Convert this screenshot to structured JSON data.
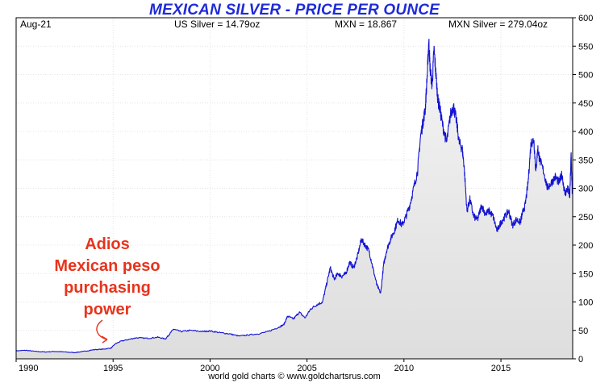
{
  "chart_data": {
    "type": "line",
    "title": "MEXICAN SILVER - PRICE PER OUNCE",
    "header": {
      "date": "Aug-21",
      "us_silver": "US Silver = 14.79oz",
      "mxn": "MXN = 18.867",
      "mxn_silver": "MXN Silver = 279.04oz"
    },
    "annotation": [
      "Adios",
      "Mexican peso",
      "purchasing",
      "power"
    ],
    "credit": "world gold charts © www.goldchartsrus.com",
    "xlim": [
      1990,
      2018.7
    ],
    "ylim": [
      0,
      600
    ],
    "x_ticks": [
      1990,
      1995,
      2000,
      2005,
      2010,
      2015
    ],
    "y_ticks": [
      0,
      50,
      100,
      150,
      200,
      250,
      300,
      350,
      400,
      450,
      500,
      550,
      600
    ],
    "grid": true,
    "series": [
      {
        "color": "#1414d2",
        "x": [
          1990.0,
          1990.5,
          1991.0,
          1991.5,
          1992.0,
          1992.5,
          1993.0,
          1993.5,
          1994.0,
          1994.5,
          1994.9,
          1995.1,
          1995.4,
          1995.8,
          1996.2,
          1996.8,
          1997.3,
          1997.7,
          1997.9,
          1998.1,
          1998.5,
          1999.0,
          1999.6,
          2000.0,
          2000.5,
          2001.0,
          2001.5,
          2002.0,
          2002.5,
          2003.0,
          2003.5,
          2003.8,
          2004.0,
          2004.3,
          2004.6,
          2004.9,
          2005.2,
          2005.5,
          2005.8,
          2006.0,
          2006.2,
          2006.4,
          2006.6,
          2006.8,
          2007.0,
          2007.2,
          2007.4,
          2007.6,
          2007.8,
          2008.0,
          2008.2,
          2008.4,
          2008.6,
          2008.8,
          2008.95,
          2009.1,
          2009.3,
          2009.5,
          2009.7,
          2009.9,
          2010.1,
          2010.3,
          2010.5,
          2010.7,
          2010.85,
          2011.0,
          2011.1,
          2011.2,
          2011.28,
          2011.35,
          2011.45,
          2011.55,
          2011.65,
          2011.75,
          2011.85,
          2012.0,
          2012.2,
          2012.4,
          2012.55,
          2012.7,
          2012.85,
          2013.0,
          2013.1,
          2013.25,
          2013.4,
          2013.6,
          2013.8,
          2014.0,
          2014.2,
          2014.4,
          2014.6,
          2014.8,
          2015.0,
          2015.2,
          2015.4,
          2015.6,
          2015.8,
          2016.0,
          2016.1,
          2016.25,
          2016.4,
          2016.55,
          2016.7,
          2016.8,
          2016.9,
          2017.0,
          2017.2,
          2017.4,
          2017.6,
          2017.8,
          2018.0,
          2018.15,
          2018.3,
          2018.45,
          2018.55,
          2018.62,
          2018.68
        ],
        "values": [
          14,
          15,
          13,
          12,
          13,
          12,
          11,
          13,
          16,
          17,
          19,
          26,
          31,
          34,
          37,
          36,
          38,
          35,
          43,
          52,
          48,
          50,
          48,
          49,
          46,
          44,
          40,
          42,
          44,
          48,
          55,
          60,
          75,
          70,
          82,
          72,
          88,
          95,
          100,
          130,
          160,
          140,
          150,
          145,
          150,
          170,
          160,
          180,
          210,
          200,
          190,
          160,
          130,
          115,
          165,
          190,
          210,
          225,
          245,
          235,
          250,
          270,
          300,
          330,
          390,
          420,
          440,
          500,
          560,
          510,
          480,
          545,
          500,
          455,
          440,
          410,
          380,
          430,
          445,
          420,
          380,
          370,
          340,
          260,
          280,
          250,
          245,
          270,
          255,
          260,
          250,
          225,
          240,
          250,
          260,
          235,
          245,
          240,
          255,
          270,
          310,
          380,
          385,
          330,
          370,
          350,
          330,
          300,
          310,
          320,
          310,
          325,
          290,
          300,
          285,
          360,
          290
        ]
      }
    ]
  }
}
